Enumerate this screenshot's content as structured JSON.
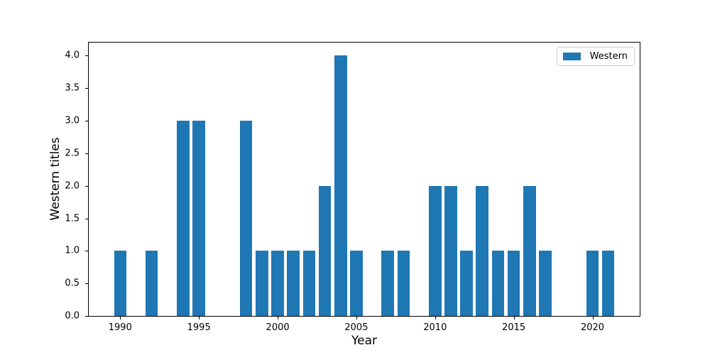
{
  "chart_data": {
    "type": "bar",
    "title": "",
    "xlabel": "Year",
    "ylabel": "Western titles",
    "x": [
      1990,
      1992,
      1994,
      1995,
      1998,
      1999,
      2000,
      2001,
      2002,
      2003,
      2004,
      2005,
      2007,
      2008,
      2010,
      2011,
      2012,
      2013,
      2014,
      2015,
      2016,
      2017,
      2020,
      2021
    ],
    "values": [
      1,
      1,
      3,
      3,
      3,
      1,
      1,
      1,
      1,
      2,
      4,
      1,
      1,
      1,
      2,
      2,
      1,
      2,
      1,
      1,
      2,
      1,
      1,
      1
    ],
    "bar_width_years": 0.8,
    "bar_color": "#1f77b4",
    "xlim": [
      1988.0,
      2023.0
    ],
    "ylim": [
      0,
      4.2
    ],
    "xticks": [
      "1990",
      "1995",
      "2000",
      "2005",
      "2010",
      "2015",
      "2020"
    ],
    "xtick_values": [
      1990,
      1995,
      2000,
      2005,
      2010,
      2015,
      2020
    ],
    "yticks": [
      "0.0",
      "0.5",
      "1.0",
      "1.5",
      "2.0",
      "2.5",
      "3.0",
      "3.5",
      "4.0"
    ],
    "ytick_values": [
      0,
      0.5,
      1,
      1.5,
      2,
      2.5,
      3,
      3.5,
      4
    ],
    "grid": false,
    "legend": {
      "position": "upper right",
      "entries": [
        {
          "label": "Western",
          "color": "#1f77b4"
        }
      ]
    }
  }
}
